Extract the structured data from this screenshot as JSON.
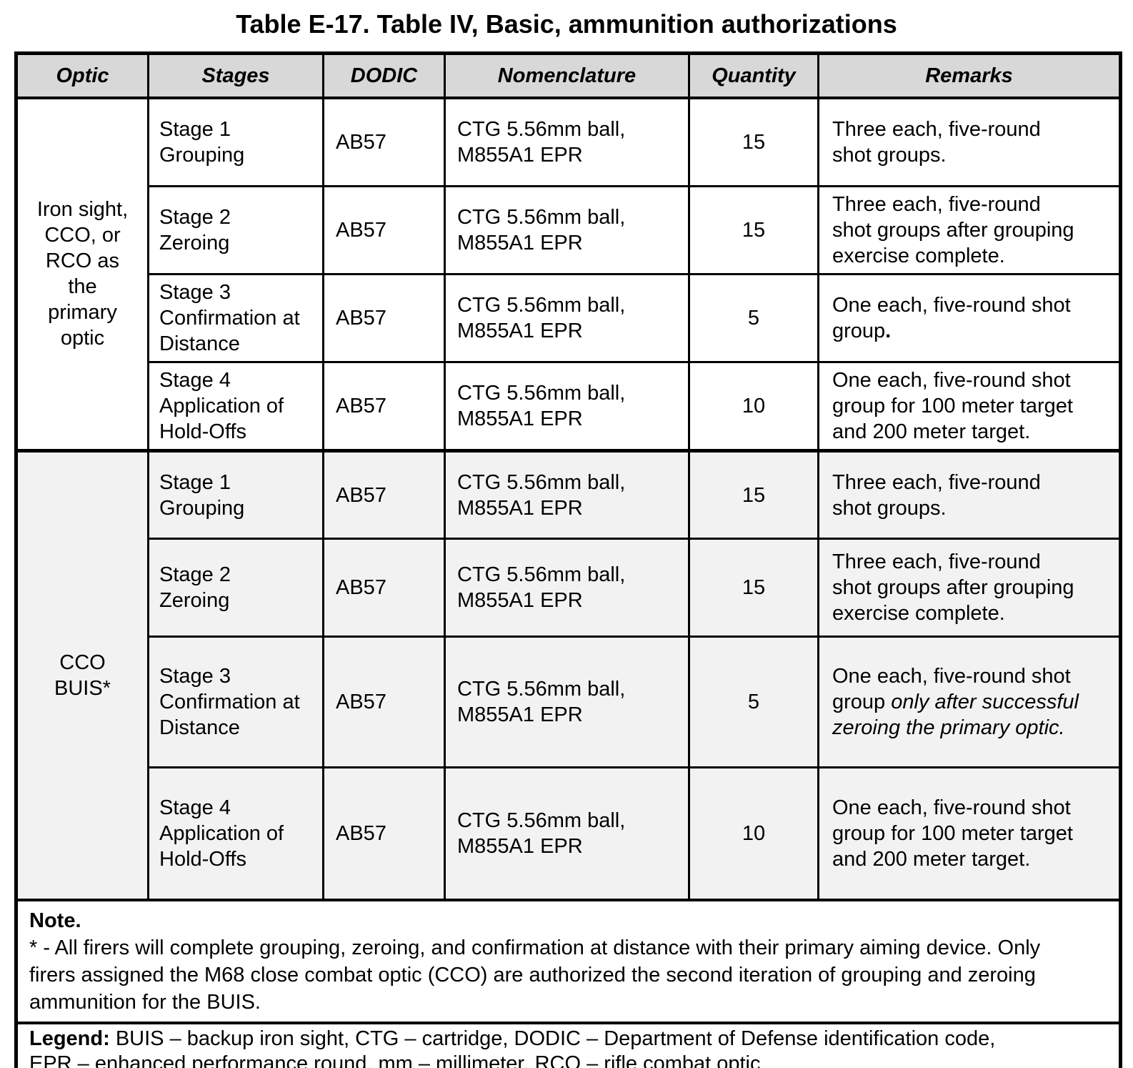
{
  "title": "Table E-17. Table IV, Basic, ammunition authorizations",
  "colors": {
    "header_bg": "#d8d8d8",
    "group2_bg": "#f2f2f2",
    "border": "#000000",
    "text": "#000000",
    "page_bg": "#ffffff"
  },
  "table": {
    "columns": [
      "Optic",
      "Stages",
      "DODIC",
      "Nomenclature",
      "Quantity",
      "Remarks"
    ],
    "groups": [
      {
        "optic": "Iron sight,\nCCO, or\nRCO as\nthe\nprimary\noptic",
        "rows": [
          {
            "stage": "Stage 1\nGrouping",
            "dodic": "AB57",
            "nomenclature": "CTG 5.56mm ball,\nM855A1 EPR",
            "quantity": "15",
            "remarks": [
              {
                "t": "Three each, five-round\nshot groups.",
                "s": "normal"
              }
            ]
          },
          {
            "stage": "Stage 2\nZeroing",
            "dodic": "AB57",
            "nomenclature": "CTG 5.56mm ball,\nM855A1 EPR",
            "quantity": "15",
            "remarks": [
              {
                "t": "Three each, five-round\nshot groups after grouping\nexercise complete.",
                "s": "normal"
              }
            ]
          },
          {
            "stage": "Stage 3\nConfirmation at\nDistance",
            "dodic": "AB57",
            "nomenclature": "CTG 5.56mm ball,\nM855A1 EPR",
            "quantity": "5",
            "remarks": [
              {
                "t": "One each, five-round shot\ngroup",
                "s": "normal"
              },
              {
                "t": ".",
                "s": "bold"
              }
            ]
          },
          {
            "stage": "Stage 4\nApplication of\nHold-Offs",
            "dodic": "AB57",
            "nomenclature": "CTG 5.56mm ball,\nM855A1 EPR",
            "quantity": "10",
            "remarks": [
              {
                "t": "One each, five-round shot\ngroup for 100 meter target\nand 200 meter target.",
                "s": "normal"
              }
            ]
          }
        ]
      },
      {
        "optic": "CCO\nBUIS*",
        "rows": [
          {
            "stage": "Stage 1\nGrouping",
            "dodic": "AB57",
            "nomenclature": "CTG 5.56mm ball,\nM855A1 EPR",
            "quantity": "15",
            "remarks": [
              {
                "t": "Three each, five-round\nshot groups.",
                "s": "normal"
              }
            ]
          },
          {
            "stage": "Stage 2\nZeroing",
            "dodic": "AB57",
            "nomenclature": "CTG 5.56mm ball,\nM855A1 EPR",
            "quantity": "15",
            "remarks": [
              {
                "t": "Three each, five-round\nshot groups after grouping\nexercise complete.",
                "s": "normal"
              }
            ]
          },
          {
            "stage": "Stage 3\nConfirmation at\nDistance",
            "dodic": "AB57",
            "nomenclature": "CTG 5.56mm ball,\nM855A1 EPR",
            "quantity": "5",
            "remarks": [
              {
                "t": "One each, five-round shot\ngroup ",
                "s": "normal"
              },
              {
                "t": "only after successful\nzeroing the primary optic.",
                "s": "italic"
              }
            ]
          },
          {
            "stage": "Stage 4\nApplication of\nHold-Offs",
            "dodic": "AB57",
            "nomenclature": "CTG 5.56mm ball,\nM855A1 EPR",
            "quantity": "10",
            "remarks": [
              {
                "t": "One each, five-round shot\ngroup for 100 meter target\nand 200 meter target.",
                "s": "normal"
              }
            ]
          }
        ]
      }
    ],
    "note": [
      {
        "t": "Note.",
        "s": "bold"
      },
      {
        "t": "\n* - All firers will complete grouping, zeroing, and confirmation at distance with their primary aiming device. Only\nfirers assigned the M68 close combat optic (CCO) are authorized the second iteration of grouping and zeroing\nammunition for the BUIS.",
        "s": "normal"
      }
    ],
    "legend": [
      {
        "t": "Legend:",
        "s": "bold"
      },
      {
        "t": " BUIS – backup iron sight, CTG – cartridge, DODIC – Department of Defense identification code,\nEPR – enhanced performance round, mm – millimeter, RCO – rifle combat optic",
        "s": "normal"
      }
    ]
  }
}
